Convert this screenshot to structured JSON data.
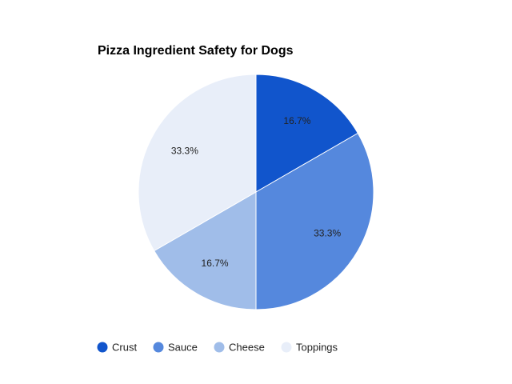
{
  "chart_data": {
    "type": "pie",
    "title": "Pizza Ingredient Safety for Dogs",
    "categories": [
      "Crust",
      "Sauce",
      "Cheese",
      "Toppings"
    ],
    "values": [
      1,
      2,
      1,
      2
    ],
    "percent_labels": [
      "16.7%",
      "33.3%",
      "16.7%",
      "33.3%"
    ],
    "colors": [
      "#1155cc",
      "#5588dd",
      "#a0bde9",
      "#e8eef9"
    ],
    "slice_border_color": "#ffffff",
    "legend_position": "bottom-left"
  }
}
